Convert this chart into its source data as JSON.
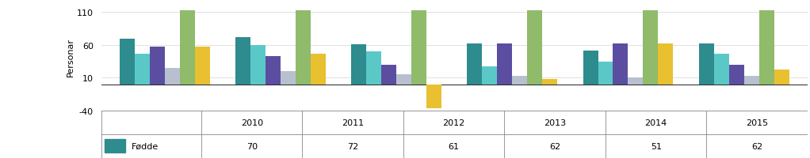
{
  "years": [
    "2010",
    "2011",
    "2012",
    "2013",
    "2014",
    "2015"
  ],
  "bar_values": [
    [
      70,
      47,
      57,
      25,
      113,
      57
    ],
    [
      72,
      60,
      43,
      20,
      113,
      47
    ],
    [
      61,
      50,
      30,
      15,
      113,
      -37
    ],
    [
      62,
      27,
      62,
      13,
      113,
      8
    ],
    [
      51,
      35,
      62,
      10,
      113,
      62
    ],
    [
      62,
      47,
      30,
      13,
      113,
      22
    ]
  ],
  "colors": [
    "#2E8B8E",
    "#5BC8C8",
    "#5B4EA0",
    "#B8C0D0",
    "#8FBB6A",
    "#E8C030"
  ],
  "ylim": [
    -40,
    125
  ],
  "yticks": [
    -40,
    10,
    60,
    110
  ],
  "ylabel": "Personar",
  "table_row_label": "Fødde",
  "table_row_values": [
    "70",
    "72",
    "61",
    "62",
    "51",
    "62"
  ],
  "legend_color": "#2E8B8E",
  "grid_color": "#D3D3D3"
}
